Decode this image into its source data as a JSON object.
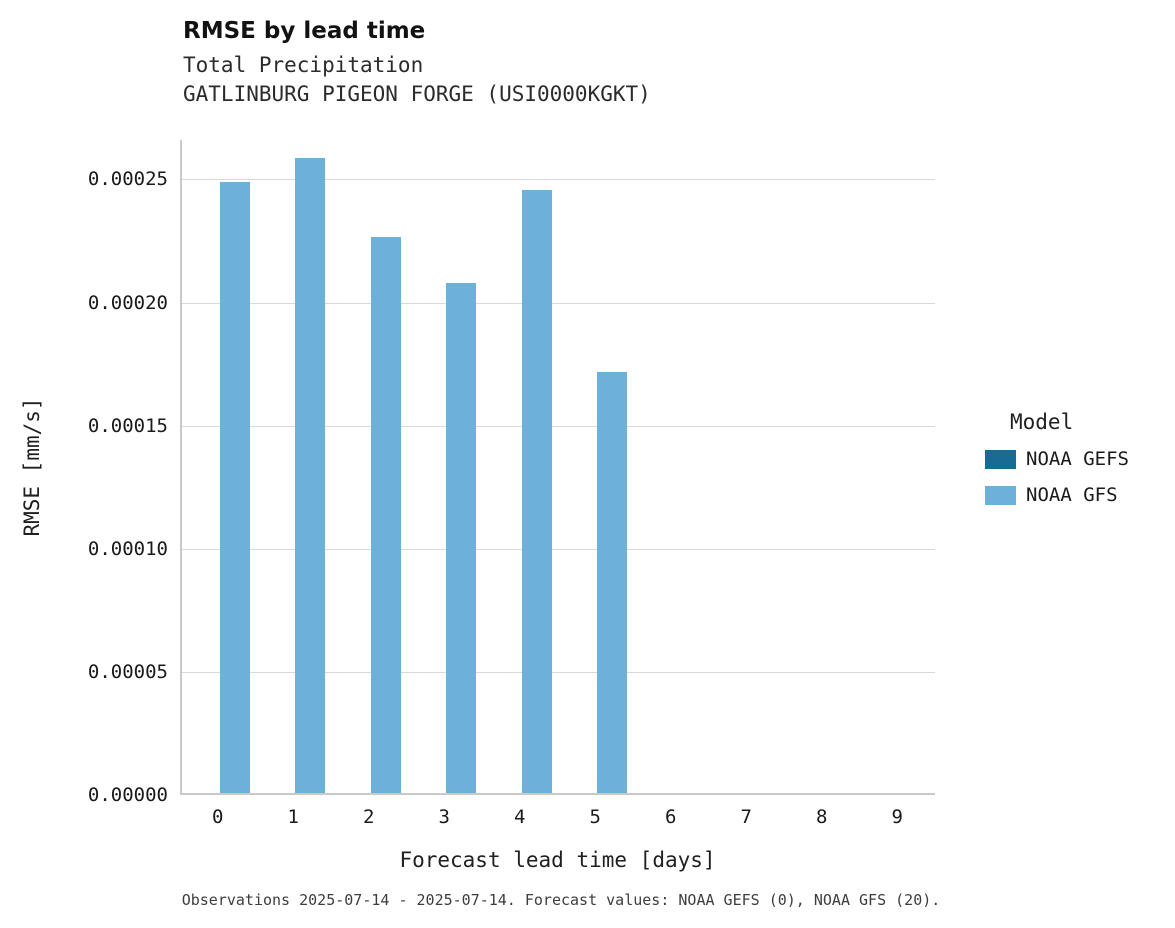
{
  "title": "RMSE by lead time",
  "subtitle1": "Total Precipitation",
  "subtitle2": "GATLINBURG PIGEON FORGE (USI0000KGKT)",
  "caption": "Observations 2025-07-14 - 2025-07-14. Forecast values: NOAA GEFS (0), NOAA GFS (20).",
  "legend": {
    "title": "Model",
    "entries": [
      {
        "label": "NOAA GEFS",
        "color": "#176b94"
      },
      {
        "label": "NOAA GFS",
        "color": "#6db1d8"
      }
    ]
  },
  "chart_data": {
    "type": "bar",
    "title": "RMSE by lead time",
    "subtitle": [
      "Total Precipitation",
      "GATLINBURG PIGEON FORGE (USI0000KGKT)"
    ],
    "xlabel": "Forecast lead time [days]",
    "ylabel": "RMSE [mm/s]",
    "categories": [
      "0",
      "1",
      "2",
      "3",
      "4",
      "5",
      "6",
      "7",
      "8",
      "9"
    ],
    "series": [
      {
        "name": "NOAA GEFS",
        "color": "#176b94",
        "values": [
          null,
          null,
          null,
          null,
          null,
          null,
          null,
          null,
          null,
          null
        ]
      },
      {
        "name": "NOAA GFS",
        "color": "#6db1d8",
        "values": [
          0.000248,
          0.000258,
          0.000226,
          0.000207,
          0.000245,
          0.000171,
          null,
          null,
          null,
          null
        ]
      }
    ],
    "ylim": [
      0,
      0.000266
    ],
    "yticks": [
      0.0,
      5e-05,
      0.0001,
      0.00015,
      0.0002,
      0.00025
    ],
    "ytick_labels": [
      "0.00000",
      "0.00005",
      "0.00010",
      "0.00015",
      "0.00020",
      "0.00025"
    ],
    "grid": true,
    "legend_position": "right"
  }
}
